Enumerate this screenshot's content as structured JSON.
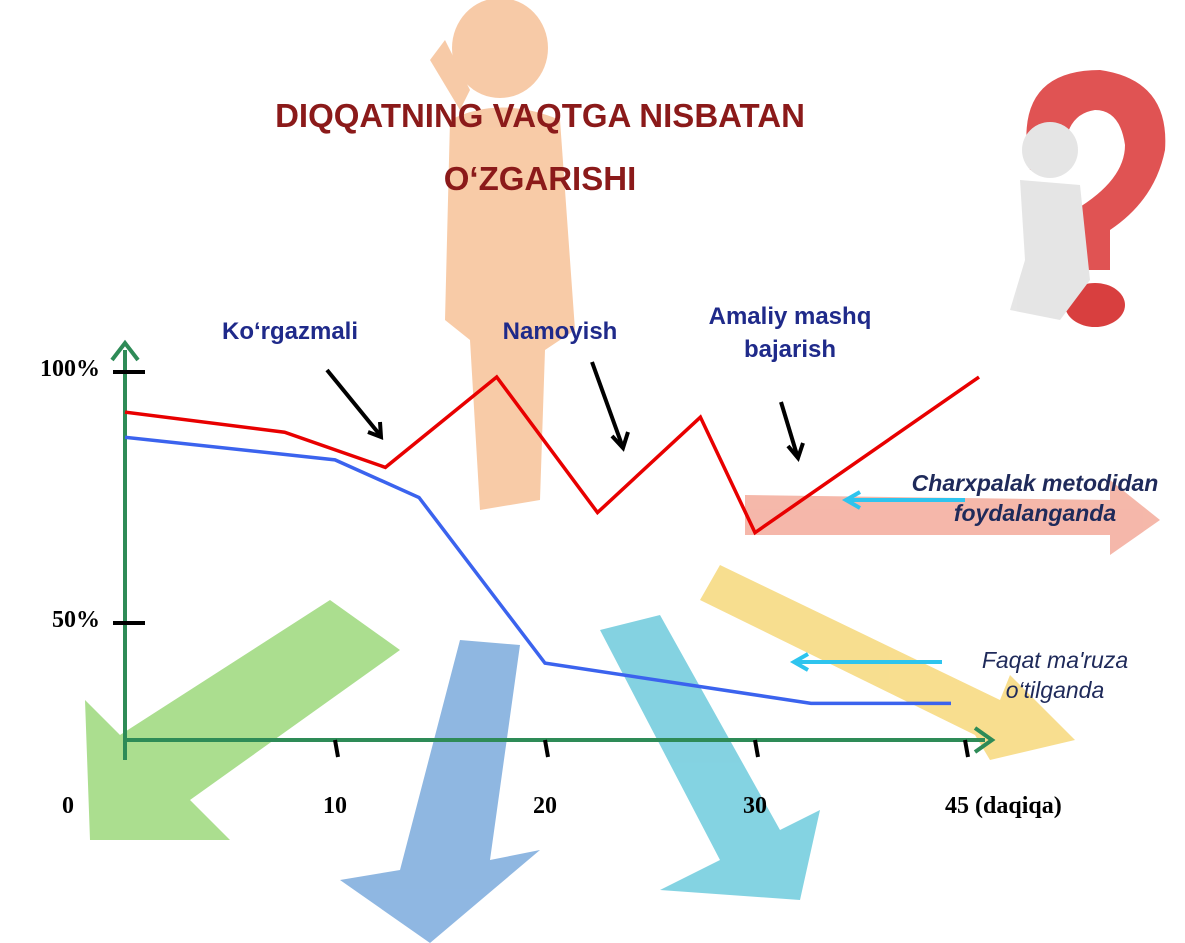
{
  "chart_data": {
    "type": "line",
    "title": [
      "DIQQATNING VAQTGA NISBATAN",
      "O‘ZGARISHI"
    ],
    "annotations": [
      "Ko‘rgazmali",
      "Namoyish",
      "Amaliy mashq bajarish"
    ],
    "xticks": [
      0,
      10,
      20,
      30,
      {
        "value": 45,
        "label": "45 (daqiqa)"
      }
    ],
    "ylim": [
      0,
      100
    ],
    "yticks": [
      {
        "value": 100,
        "label": "100%"
      },
      {
        "value": 50,
        "label": "50%"
      }
    ],
    "grid": false,
    "series": [
      {
        "name": "Charxpalak metodidan foydalanganda",
        "color": "#e80000",
        "x": [
          0,
          7.6,
          12.4,
          17.7,
          22.5,
          27.4,
          30,
          46
        ],
        "values": [
          92,
          88,
          81,
          99,
          72,
          91,
          68,
          99
        ]
      },
      {
        "name": "Faqat ma'ruza o‘tilganda",
        "color": "#3b63ee",
        "x": [
          0,
          10,
          14,
          20,
          34,
          44
        ],
        "values": [
          87,
          82.5,
          75,
          42,
          34,
          34
        ]
      }
    ]
  }
}
